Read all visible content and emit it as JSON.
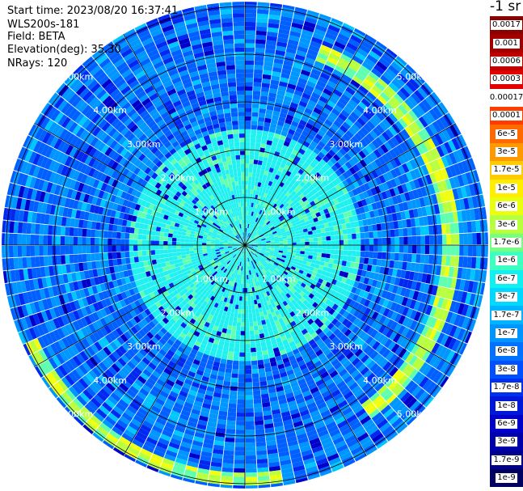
{
  "info": {
    "start_time": "Start time: 2023/08/20 16:37:41",
    "instrument": "WLS200s-181",
    "field": "Field: BETA",
    "elevation": "Elevation(deg): 35.30",
    "nrays": "NRays: 120"
  },
  "colorbar": {
    "title": "-1 sr",
    "labels": [
      "0.0017",
      "0.001",
      "0.0006",
      "0.0003",
      "0.00017",
      "0.0001",
      "6e-5",
      "3e-5",
      "1.7e-5",
      "1e-5",
      "6e-6",
      "3e-6",
      "1.7e-6",
      "1e-6",
      "6e-7",
      "3e-7",
      "1.7e-7",
      "1e-7",
      "6e-8",
      "3e-8",
      "1.7e-8",
      "1e-8",
      "6e-9",
      "3e-9",
      "1.7e-9",
      "1e-9"
    ],
    "colors": [
      "#8b0000",
      "#a00000",
      "#c00000",
      "#e00000",
      "#ffffff",
      "#ff3c00",
      "#ff6a00",
      "#ff9900",
      "#ffcc00",
      "#ffee00",
      "#e8ff10",
      "#b8ff40",
      "#78ff80",
      "#3cffc0",
      "#10f0f0",
      "#00d8ff",
      "#00b4ff",
      "#0094ff",
      "#0072ff",
      "#0050ff",
      "#0030f0",
      "#0018d8",
      "#0000c8",
      "#0000a8",
      "#000088",
      "#000060"
    ]
  },
  "chart_data": {
    "type": "heatmap",
    "projection": "polar PPI scan",
    "field": "BETA",
    "elevation_deg": 35.3,
    "n_rays": 120,
    "range_rings_km": [
      1,
      2,
      3,
      4,
      5
    ],
    "ring_labels": [
      "1.00km",
      "2.00km",
      "3.00km",
      "4.00km",
      "5.00km"
    ],
    "spokes_deg": [
      0,
      30,
      60,
      90,
      120,
      150,
      180,
      210,
      240,
      270,
      300,
      330
    ],
    "max_range_km": 5.1,
    "colorscale": [
      "1e-9",
      "1.7e-9",
      "3e-9",
      "6e-9",
      "1e-8",
      "1.7e-8",
      "3e-8",
      "6e-8",
      "1e-7",
      "1.7e-7",
      "3e-7",
      "6e-7",
      "1e-6",
      "1.7e-6",
      "3e-6",
      "6e-6",
      "1e-5",
      "1.7e-5",
      "3e-5",
      "6e-5",
      "0.0001",
      "0.00017",
      "0.0003",
      "0.0006",
      "0.001",
      "0.0017"
    ],
    "features": [
      {
        "description": "near-field values 3e-7 to 1e-6",
        "range_km": [
          0,
          2.5
        ]
      },
      {
        "description": "background 1e-8 to 1e-7",
        "range_km": [
          2.5,
          5.1
        ]
      },
      {
        "description": "enhanced arc 3e-6 to 3e-5",
        "range_km": [
          4.1,
          4.5
        ],
        "azimuth_deg": [
          20,
          145
        ]
      },
      {
        "description": "enhanced arc 3e-6 to 3e-5",
        "range_km": [
          4.8,
          5.0
        ],
        "azimuth_deg": [
          170,
          245
        ]
      }
    ]
  }
}
